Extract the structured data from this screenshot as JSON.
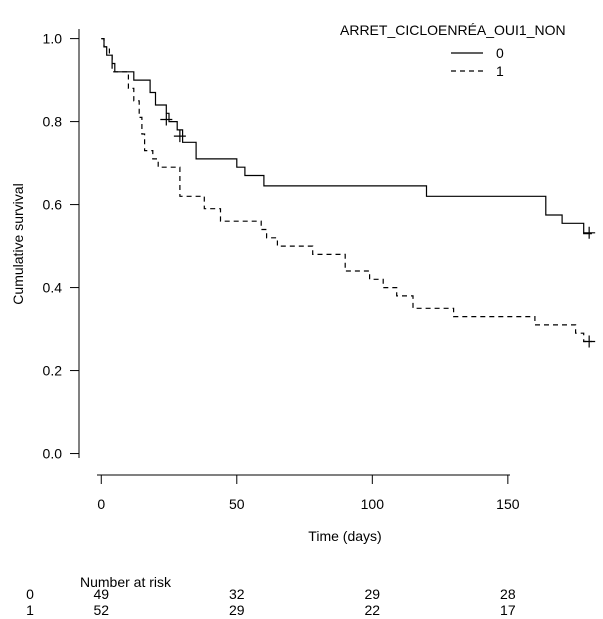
{
  "chart_data": {
    "type": "line",
    "title": "",
    "xlabel": "Time (days)",
    "ylabel": "Cumulative survival",
    "xlim": [
      -6,
      184
    ],
    "ylim": [
      -0.03,
      1.04
    ],
    "x_ticks": [
      0,
      50,
      100,
      150
    ],
    "y_ticks": [
      0.0,
      0.2,
      0.4,
      0.6,
      0.8,
      1.0
    ],
    "x_tick_labels": [
      "0",
      "50",
      "100",
      "150"
    ],
    "y_tick_labels": [
      "0.0",
      "0.2",
      "0.4",
      "0.6",
      "0.8",
      "1.0"
    ],
    "grid": false,
    "legend": {
      "title": "ARRET_CICLOENRÉA_OUI1_NON",
      "position": "top-right",
      "entries": [
        {
          "label": "0",
          "style": "solid"
        },
        {
          "label": "1",
          "style": "dashed"
        }
      ]
    },
    "series": [
      {
        "name": "0",
        "style": "solid",
        "steps": [
          [
            0,
            1.0
          ],
          [
            1,
            0.98
          ],
          [
            2,
            0.96
          ],
          [
            4,
            0.94
          ],
          [
            5,
            0.92
          ],
          [
            12,
            0.9
          ],
          [
            18,
            0.87
          ],
          [
            20,
            0.84
          ],
          [
            24,
            0.82
          ],
          [
            25,
            0.8
          ],
          [
            28,
            0.78
          ],
          [
            30,
            0.75
          ],
          [
            35,
            0.71
          ],
          [
            50,
            0.69
          ],
          [
            53,
            0.67
          ],
          [
            60,
            0.645
          ],
          [
            120,
            0.62
          ],
          [
            164,
            0.575
          ],
          [
            170,
            0.555
          ],
          [
            178,
            0.53
          ]
        ],
        "censored": [
          [
            24,
            0.805
          ],
          [
            29,
            0.765
          ],
          [
            180,
            0.532
          ]
        ],
        "end_x": 181
      },
      {
        "name": "1",
        "style": "dashed",
        "steps": [
          [
            0,
            1.0
          ],
          [
            1,
            0.98
          ],
          [
            3,
            0.96
          ],
          [
            4,
            0.92
          ],
          [
            10,
            0.88
          ],
          [
            12,
            0.85
          ],
          [
            14,
            0.81
          ],
          [
            15,
            0.77
          ],
          [
            16,
            0.73
          ],
          [
            19,
            0.71
          ],
          [
            21,
            0.69
          ],
          [
            29,
            0.62
          ],
          [
            38,
            0.59
          ],
          [
            44,
            0.56
          ],
          [
            59,
            0.54
          ],
          [
            61,
            0.52
          ],
          [
            65,
            0.5
          ],
          [
            78,
            0.48
          ],
          [
            90,
            0.44
          ],
          [
            99,
            0.42
          ],
          [
            104,
            0.4
          ],
          [
            109,
            0.38
          ],
          [
            115,
            0.35
          ],
          [
            130,
            0.33
          ],
          [
            160,
            0.31
          ],
          [
            175,
            0.29
          ],
          [
            178,
            0.27
          ]
        ],
        "censored": [
          [
            180,
            0.27
          ]
        ],
        "end_x": 181
      }
    ]
  },
  "risk_table": {
    "title": "Number at risk",
    "times": [
      0,
      50,
      100,
      150
    ],
    "rows": [
      {
        "group": "0",
        "values": [
          "49",
          "32",
          "29",
          "28"
        ]
      },
      {
        "group": "1",
        "values": [
          "52",
          "29",
          "22",
          "17"
        ]
      }
    ]
  }
}
